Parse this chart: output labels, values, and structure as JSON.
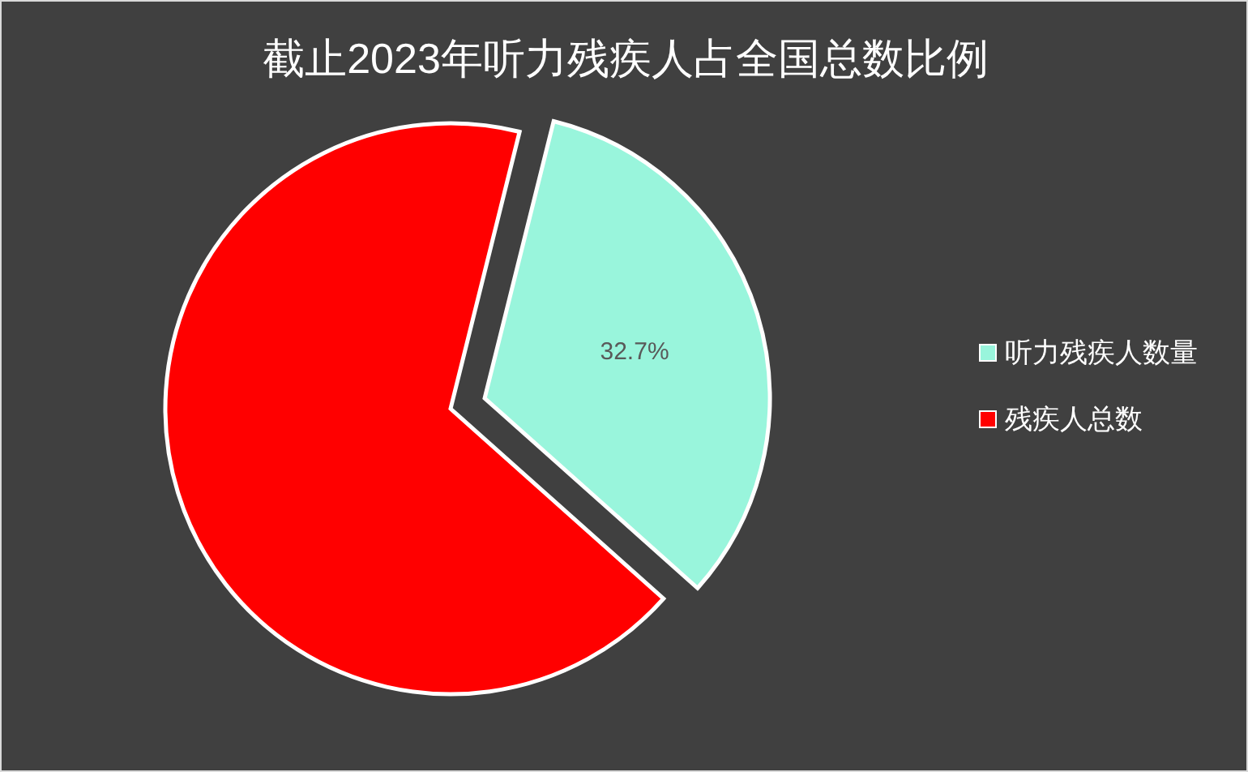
{
  "chart_data": {
    "type": "pie",
    "title": "截止2023年听力残疾人占全国总数比例",
    "categories": [
      "听力残疾人数量",
      "残疾人总数"
    ],
    "values": [
      32.7,
      67.3
    ],
    "colors": [
      "#99f5dc",
      "#ff0000"
    ],
    "value_labels": [
      "32.7%",
      null
    ],
    "legend": "right"
  }
}
